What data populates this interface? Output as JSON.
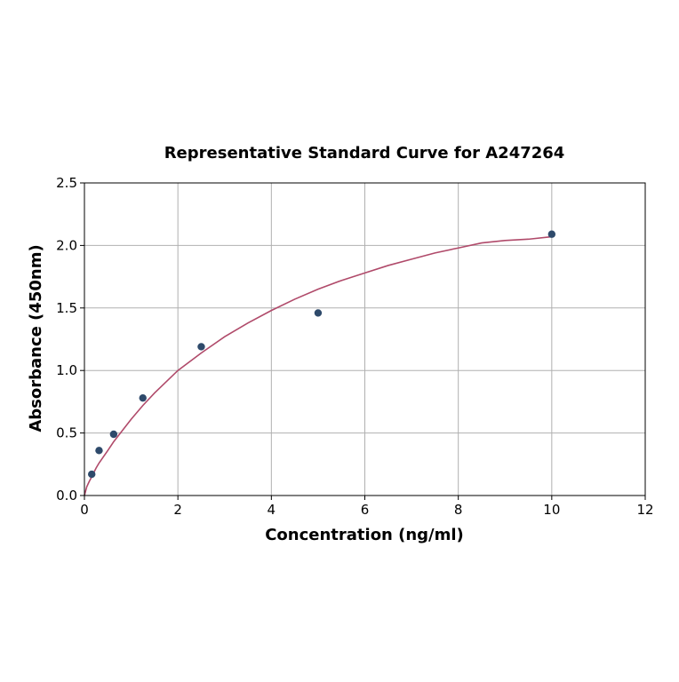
{
  "chart_data": {
    "type": "scatter",
    "title": "Representative Standard Curve for A247264",
    "xlabel": "Concentration (ng/ml)",
    "ylabel": "Absorbance (450nm)",
    "xlim": [
      0,
      12
    ],
    "ylim": [
      0,
      2.5
    ],
    "x_ticks": [
      0,
      2,
      4,
      6,
      8,
      10,
      12
    ],
    "y_ticks": [
      0.0,
      0.5,
      1.0,
      1.5,
      2.0,
      2.5
    ],
    "x_tick_labels": [
      "0",
      "2",
      "4",
      "6",
      "8",
      "10",
      "12"
    ],
    "y_tick_labels": [
      "0.0",
      "0.5",
      "1.0",
      "1.5",
      "2.0",
      "2.5"
    ],
    "grid": true,
    "points": {
      "x": [
        0.156,
        0.313,
        0.625,
        1.25,
        2.5,
        5,
        10
      ],
      "y": [
        0.17,
        0.36,
        0.49,
        0.78,
        1.19,
        1.46,
        2.09
      ]
    },
    "curve": {
      "x": [
        0.0,
        0.05,
        0.1,
        0.156,
        0.25,
        0.313,
        0.5,
        0.625,
        0.75,
        1.0,
        1.25,
        1.5,
        2.0,
        2.5,
        3.0,
        3.5,
        4.0,
        4.5,
        5.0,
        5.5,
        6.0,
        6.5,
        7.0,
        7.5,
        8.0,
        8.5,
        9.0,
        9.5,
        10.0
      ],
      "y": [
        0.0,
        0.07,
        0.11,
        0.15,
        0.22,
        0.26,
        0.36,
        0.43,
        0.49,
        0.61,
        0.72,
        0.82,
        1.0,
        1.14,
        1.27,
        1.38,
        1.48,
        1.57,
        1.65,
        1.72,
        1.78,
        1.84,
        1.89,
        1.94,
        1.98,
        2.02,
        2.04,
        2.05,
        2.07
      ]
    },
    "colors": {
      "points": "#2e4a6b",
      "curve": "#b04a6a",
      "grid": "#b0b0b0",
      "axes": "#000000"
    }
  }
}
